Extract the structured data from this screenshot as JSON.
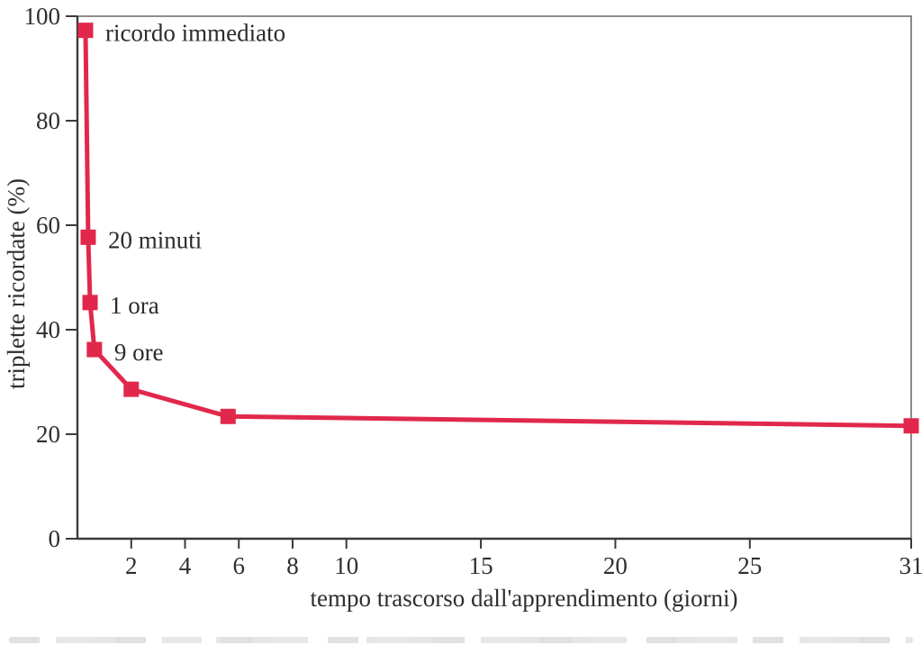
{
  "chart_data": {
    "type": "line",
    "title": "",
    "xlabel": "tempo trascorso dall'apprendimento (giorni)",
    "ylabel": "triplette ricordate (%)",
    "xlim": [
      0,
      31
    ],
    "ylim": [
      0,
      100
    ],
    "x_ticks": [
      2,
      4,
      6,
      8,
      10,
      15,
      20,
      25,
      31
    ],
    "y_ticks": [
      0,
      20,
      40,
      60,
      80,
      100
    ],
    "grid": false,
    "legend_position": "none",
    "marker": "square",
    "colors": {
      "line": "#e1284c",
      "marker": "#e1284c",
      "axis": "#3a3a3a",
      "box_border": "#7d7d7d",
      "text": "#2e2e2e"
    },
    "points": [
      {
        "x_days": 0.3,
        "y_pct": 97.3,
        "label": "ricordo immediato"
      },
      {
        "x_days": 0.4,
        "y_pct": 57.7,
        "label": "20 minuti"
      },
      {
        "x_days": 0.47,
        "y_pct": 45.2,
        "label": "1 ora"
      },
      {
        "x_days": 0.63,
        "y_pct": 36.2,
        "label": "9 ore"
      },
      {
        "x_days": 2,
        "y_pct": 28.6,
        "label": ""
      },
      {
        "x_days": 5.6,
        "y_pct": 23.4,
        "label": ""
      },
      {
        "x_days": 31,
        "y_pct": 21.6,
        "label": ""
      }
    ]
  }
}
